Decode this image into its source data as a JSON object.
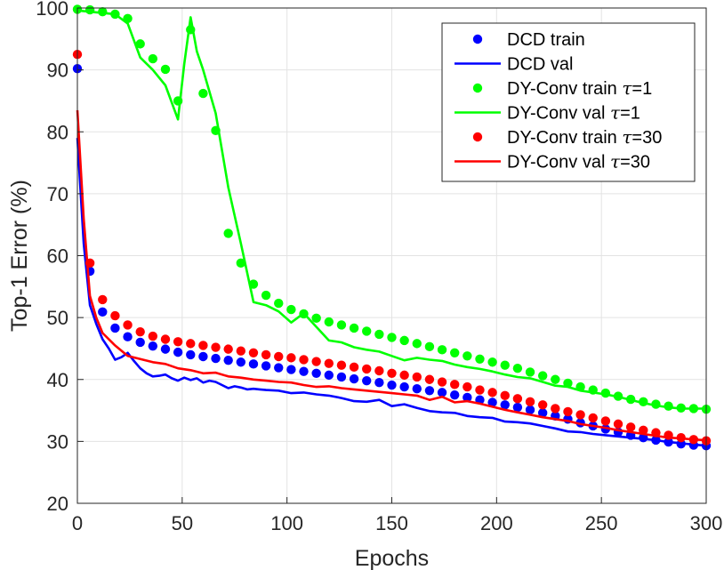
{
  "chart_data": {
    "type": "line",
    "title": "",
    "xlabel": "Epochs",
    "ylabel": "Top-1 Error (%)",
    "xlim": [
      0,
      300
    ],
    "ylim": [
      20,
      100
    ],
    "xticks": [
      0,
      50,
      100,
      150,
      200,
      250,
      300
    ],
    "yticks": [
      20,
      30,
      40,
      50,
      60,
      70,
      80,
      90,
      100
    ],
    "grid": true,
    "legend_position": "top-right",
    "series": [
      {
        "name": "DCD train",
        "legend_label": "DCD train",
        "style": "dots",
        "color": "#0000ff",
        "x": [
          0,
          6,
          12,
          18,
          24,
          30,
          36,
          42,
          48,
          54,
          60,
          66,
          72,
          78,
          84,
          90,
          96,
          102,
          108,
          114,
          120,
          126,
          132,
          138,
          144,
          150,
          156,
          162,
          168,
          174,
          180,
          186,
          192,
          198,
          204,
          210,
          216,
          222,
          228,
          234,
          240,
          246,
          252,
          258,
          264,
          270,
          276,
          282,
          288,
          294,
          300
        ],
        "y": [
          90.2,
          57.5,
          50.9,
          48.3,
          46.9,
          46.0,
          45.4,
          44.9,
          44.4,
          44.0,
          43.7,
          43.4,
          43.1,
          42.8,
          42.5,
          42.2,
          41.9,
          41.6,
          41.3,
          41.0,
          40.7,
          40.4,
          40.1,
          39.8,
          39.5,
          39.1,
          38.8,
          38.5,
          38.2,
          37.9,
          37.5,
          37.1,
          36.7,
          36.3,
          35.9,
          35.5,
          35.1,
          34.6,
          34.1,
          33.6,
          33.0,
          32.5,
          32.0,
          31.5,
          31.0,
          30.6,
          30.2,
          29.9,
          29.6,
          29.4,
          29.3
        ]
      },
      {
        "name": "DCD val",
        "legend_label": "DCD val",
        "style": "line",
        "color": "#0000ff",
        "x": [
          0,
          3,
          6,
          9,
          12,
          15,
          18,
          21,
          24,
          27,
          30,
          33,
          36,
          39,
          42,
          45,
          48,
          51,
          54,
          57,
          60,
          63,
          66,
          69,
          72,
          75,
          78,
          81,
          84,
          87,
          90,
          96,
          102,
          108,
          114,
          120,
          126,
          132,
          138,
          144,
          150,
          156,
          162,
          168,
          174,
          180,
          186,
          192,
          198,
          204,
          210,
          216,
          222,
          228,
          234,
          240,
          246,
          252,
          258,
          264,
          270,
          276,
          282,
          288,
          294,
          300
        ],
        "y": [
          79,
          62,
          52,
          49,
          46.5,
          45,
          43.2,
          43.6,
          44.3,
          43,
          41.8,
          41,
          40.5,
          40.6,
          40.8,
          40.2,
          39.8,
          40.3,
          39.9,
          40.2,
          39.5,
          39.8,
          39.6,
          39.1,
          38.6,
          38.9,
          38.7,
          38.4,
          38.5,
          38.4,
          38.3,
          38.2,
          37.8,
          37.9,
          37.6,
          37.4,
          37.0,
          36.5,
          36.4,
          36.7,
          35.7,
          36.0,
          35.4,
          34.9,
          34.7,
          34.6,
          34.1,
          33.9,
          33.8,
          33.2,
          33.1,
          32.9,
          32.5,
          32.1,
          31.6,
          31.5,
          31.2,
          31.0,
          30.8,
          30.6,
          30.4,
          30.2,
          29.9,
          29.7,
          29.5,
          29.3
        ]
      },
      {
        "name": "DY-Conv train tau=1",
        "legend_label": "DY-Conv train τ=1",
        "legend_main": "DY-Conv train ",
        "legend_param": "τ",
        "legend_value": "=1",
        "style": "dots",
        "color": "#00ff00",
        "x": [
          0,
          6,
          12,
          18,
          24,
          30,
          36,
          42,
          48,
          54,
          60,
          66,
          72,
          78,
          84,
          90,
          96,
          102,
          108,
          114,
          120,
          126,
          132,
          138,
          144,
          150,
          156,
          162,
          168,
          174,
          180,
          186,
          192,
          198,
          204,
          210,
          216,
          222,
          228,
          234,
          240,
          246,
          252,
          258,
          264,
          270,
          276,
          282,
          288,
          294,
          300
        ],
        "y": [
          99.8,
          99.7,
          99.4,
          99.0,
          98.3,
          94.2,
          91.8,
          90.1,
          85.0,
          96.5,
          86.2,
          80.2,
          63.6,
          58.8,
          55.4,
          53.6,
          52.3,
          51.3,
          50.6,
          49.9,
          49.3,
          48.8,
          48.3,
          47.8,
          47.3,
          46.8,
          46.3,
          45.8,
          45.3,
          44.8,
          44.3,
          43.8,
          43.3,
          42.8,
          42.3,
          41.8,
          41.2,
          40.6,
          40.0,
          39.4,
          38.8,
          38.3,
          37.8,
          37.3,
          36.8,
          36.4,
          36.0,
          35.7,
          35.4,
          35.3,
          35.2
        ]
      },
      {
        "name": "DY-Conv val tau=1",
        "legend_label": "DY-Conv val τ=1",
        "legend_main": "DY-Conv val ",
        "legend_param": "τ",
        "legend_value": "=1",
        "style": "line",
        "color": "#00ff00",
        "x": [
          0,
          6,
          12,
          18,
          24,
          30,
          36,
          42,
          48,
          51,
          54,
          57,
          60,
          66,
          72,
          78,
          84,
          90,
          96,
          102,
          108,
          114,
          120,
          126,
          132,
          138,
          144,
          150,
          156,
          162,
          168,
          174,
          180,
          186,
          192,
          198,
          204,
          210,
          216,
          222,
          228,
          234,
          240,
          246,
          252,
          258,
          264,
          270,
          276,
          282,
          288,
          294,
          300
        ],
        "y": [
          99.6,
          99.4,
          99.2,
          99.0,
          97.5,
          92,
          90,
          87.5,
          82,
          91,
          98.5,
          93,
          90,
          83,
          71,
          62,
          52.5,
          52,
          51,
          49.2,
          50.7,
          48.5,
          46.3,
          46.0,
          45.2,
          44.8,
          44.5,
          43.8,
          43.1,
          43.5,
          43.2,
          43.0,
          42.4,
          42.0,
          41.7,
          41.3,
          40.8,
          40.4,
          40.2,
          39.6,
          39.0,
          38.8,
          38.2,
          37.9,
          37.6,
          37.2,
          36.7,
          36.2,
          35.8,
          35.5,
          35.3,
          35.3,
          35.3
        ]
      },
      {
        "name": "DY-Conv train tau=30",
        "legend_label": "DY-Conv train τ=30",
        "legend_main": "DY-Conv train ",
        "legend_param": "τ",
        "legend_value": "=30",
        "style": "dots",
        "color": "#ff0000",
        "x": [
          0,
          6,
          12,
          18,
          24,
          30,
          36,
          42,
          48,
          54,
          60,
          66,
          72,
          78,
          84,
          90,
          96,
          102,
          108,
          114,
          120,
          126,
          132,
          138,
          144,
          150,
          156,
          162,
          168,
          174,
          180,
          186,
          192,
          198,
          204,
          210,
          216,
          222,
          228,
          234,
          240,
          246,
          252,
          258,
          264,
          270,
          276,
          282,
          288,
          294,
          300
        ],
        "y": [
          92.5,
          58.8,
          52.9,
          50.3,
          48.8,
          47.7,
          47.0,
          46.5,
          46.1,
          45.8,
          45.5,
          45.2,
          44.9,
          44.6,
          44.3,
          44.0,
          43.7,
          43.5,
          43.2,
          42.9,
          42.6,
          42.3,
          42.0,
          41.7,
          41.4,
          41.0,
          40.7,
          40.4,
          40.0,
          39.6,
          39.2,
          38.8,
          38.3,
          37.9,
          37.4,
          36.9,
          36.4,
          35.9,
          35.3,
          34.8,
          34.3,
          33.8,
          33.3,
          32.8,
          32.3,
          31.8,
          31.4,
          31.0,
          30.6,
          30.3,
          30.1
        ]
      },
      {
        "name": "DY-Conv val tau=30",
        "legend_label": "DY-Conv val τ=30",
        "legend_main": "DY-Conv val ",
        "legend_param": "τ",
        "legend_value": "=30",
        "style": "line",
        "color": "#ff0000",
        "x": [
          0,
          3,
          6,
          9,
          12,
          18,
          24,
          30,
          36,
          42,
          48,
          54,
          60,
          66,
          72,
          78,
          84,
          90,
          96,
          102,
          108,
          114,
          120,
          126,
          132,
          138,
          144,
          150,
          156,
          162,
          168,
          174,
          180,
          186,
          192,
          198,
          204,
          210,
          216,
          222,
          228,
          234,
          240,
          246,
          252,
          258,
          264,
          270,
          276,
          282,
          288,
          294,
          300
        ],
        "y": [
          83.5,
          66,
          53.5,
          50,
          47.5,
          45.5,
          43.8,
          43.3,
          42.8,
          42.5,
          41.8,
          41.5,
          41.0,
          41.1,
          40.5,
          40.3,
          40.0,
          39.8,
          39.6,
          39.5,
          39.1,
          38.8,
          38.9,
          38.6,
          38.4,
          38.2,
          38.0,
          37.8,
          37.6,
          37.4,
          36.7,
          37.2,
          36.3,
          36.5,
          36.1,
          35.6,
          35.1,
          34.7,
          34.3,
          33.9,
          33.6,
          33.3,
          32.8,
          32.5,
          32.2,
          31.8,
          31.5,
          31.2,
          30.9,
          30.6,
          30.5,
          30.3,
          30.2
        ]
      }
    ]
  }
}
